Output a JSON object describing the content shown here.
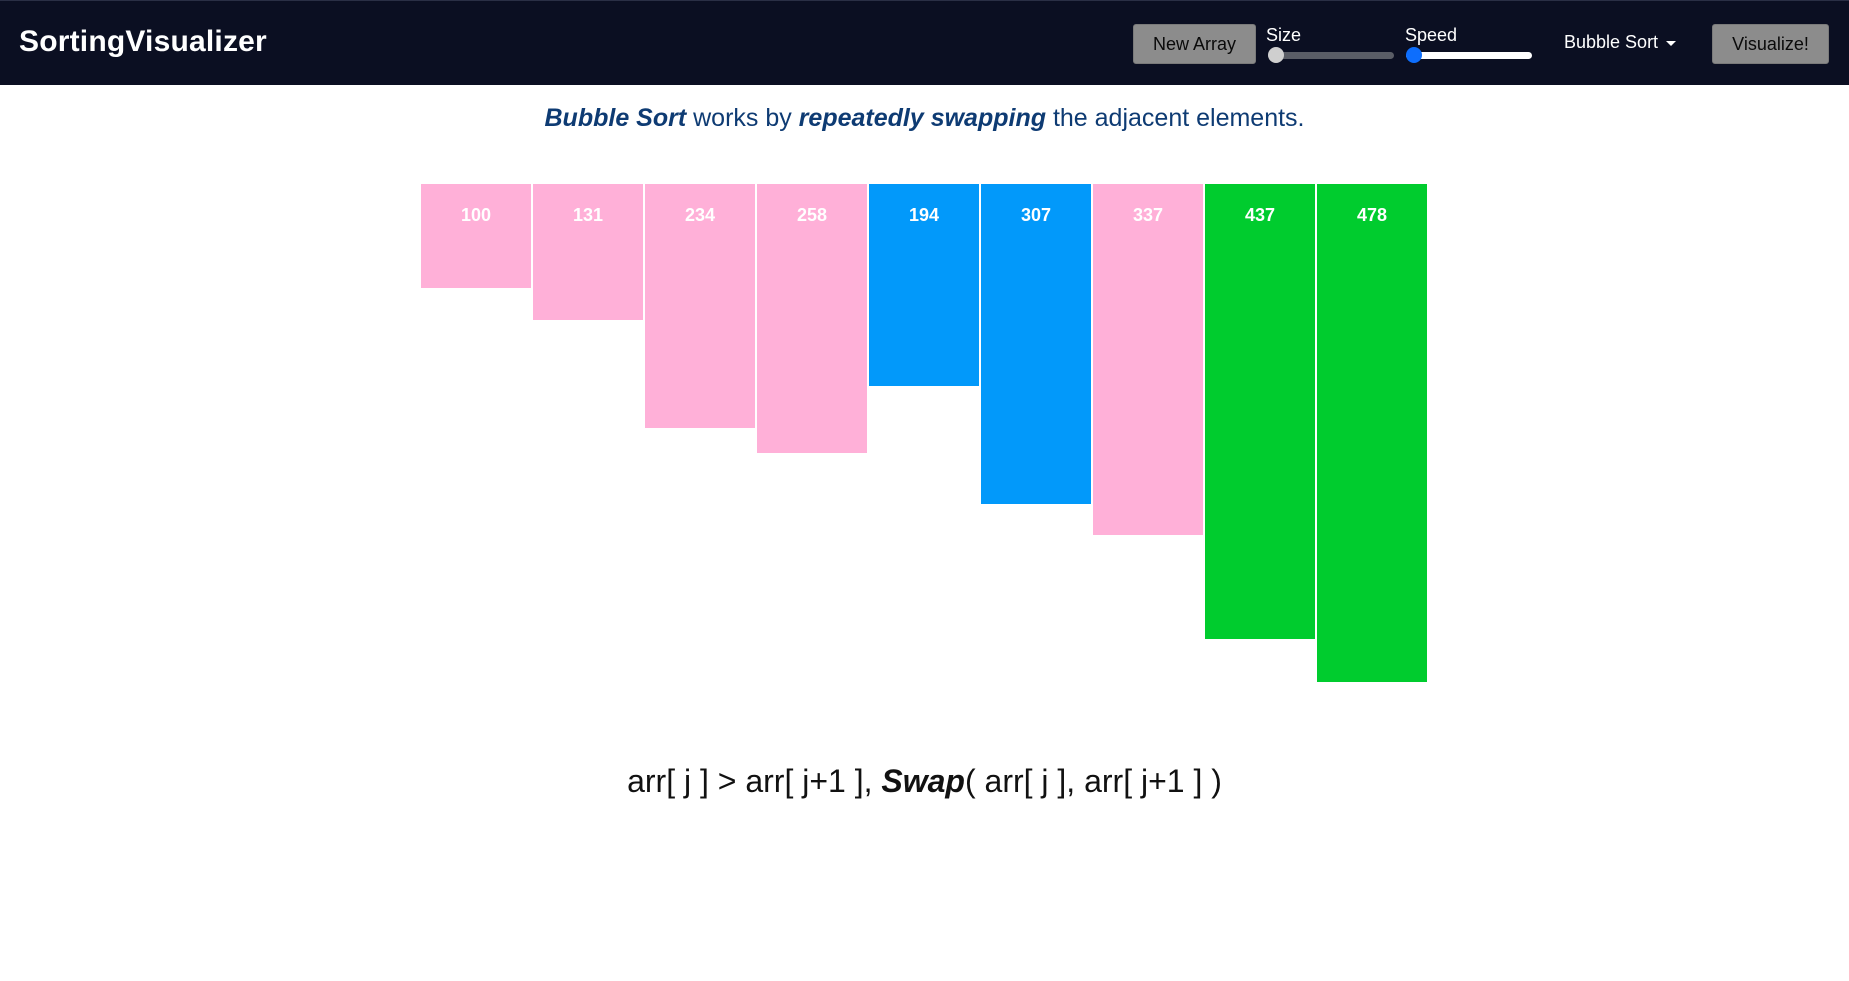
{
  "app": {
    "brand": "SortingVisualizer"
  },
  "toolbar": {
    "new_array_label": "New Array",
    "size_label": "Size",
    "size_value_fraction": 0.0,
    "speed_label": "Speed",
    "speed_value_fraction": 0.0,
    "algorithm_selected": "Bubble Sort",
    "visualize_label": "Visualize!"
  },
  "description": {
    "part1": "Bubble Sort",
    "part2": " works by ",
    "part3": "repeatedly swapping",
    "part4": " the adjacent elements."
  },
  "colors": {
    "navbar_bg": "#0b0f22",
    "default_bar": "#ffb0d8",
    "comparing_bar": "#0299fa",
    "sorted_bar": "#00cc2e",
    "description_text": "#0e3b73"
  },
  "array": {
    "max_value": 478,
    "bars": [
      {
        "value": 100,
        "label": "100",
        "state": "default"
      },
      {
        "value": 131,
        "label": "131",
        "state": "default"
      },
      {
        "value": 234,
        "label": "234",
        "state": "default"
      },
      {
        "value": 258,
        "label": "258",
        "state": "default"
      },
      {
        "value": 194,
        "label": "194",
        "state": "comparing"
      },
      {
        "value": 307,
        "label": "307",
        "state": "comparing"
      },
      {
        "value": 337,
        "label": "337",
        "state": "default"
      },
      {
        "value": 437,
        "label": "437",
        "state": "sorted"
      },
      {
        "value": 478,
        "label": "478",
        "state": "sorted"
      }
    ]
  },
  "formula": {
    "part1": "arr[ j ] > arr[ j+1 ], ",
    "part2": "Swap",
    "part3": "( arr[ j ], arr[ j+1 ] )"
  }
}
